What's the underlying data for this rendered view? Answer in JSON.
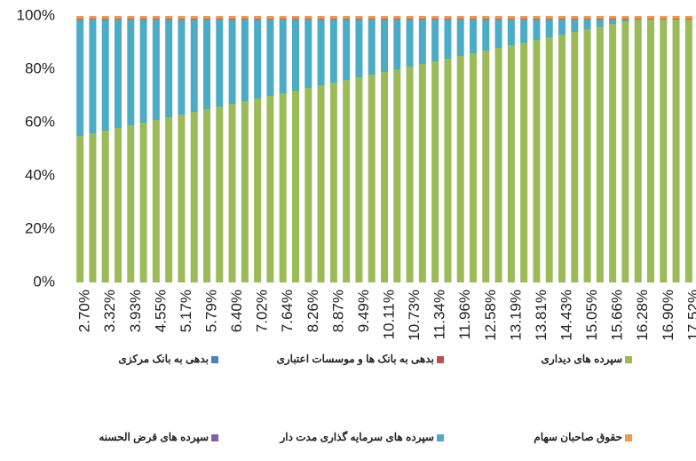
{
  "chart_data": {
    "type": "stacked_bar",
    "categories": [
      "2.70%",
      null,
      "3.32%",
      null,
      "3.93%",
      null,
      "4.55%",
      null,
      "5.17%",
      null,
      "5.79%",
      null,
      "6.40%",
      null,
      "7.02%",
      null,
      "7.64%",
      null,
      "8.26%",
      null,
      "8.87%",
      null,
      "9.49%",
      null,
      "10.11%",
      null,
      "10.73%",
      null,
      "11.34%",
      null,
      "11.96%",
      null,
      "12.58%",
      null,
      "13.19%",
      null,
      "13.81%",
      null,
      "14.43%",
      null,
      "15.05%",
      null,
      "15.66%",
      null,
      "16.28%",
      null,
      "16.90%",
      null,
      "17.52%"
    ],
    "series": [
      {
        "name": "سپرده های دیداری",
        "color": "#9bbb59",
        "values": [
          55,
          56,
          57,
          58,
          59,
          60,
          61,
          62,
          63,
          64,
          65,
          66,
          67,
          68,
          69,
          70,
          71,
          72,
          73,
          74,
          75,
          76,
          77,
          78,
          79,
          80,
          81,
          82,
          83,
          84,
          85,
          86,
          87,
          88,
          89,
          90,
          91,
          92,
          93,
          94,
          95,
          96,
          97,
          98,
          98.7,
          98.7,
          98.7,
          98.7,
          98.7
        ]
      },
      {
        "name": "سپرده های سرمایه گذاری مدت دار",
        "color": "#4bacc6",
        "values": [
          43.7,
          42.7,
          41.7,
          40.7,
          39.7,
          38.7,
          37.7,
          36.7,
          35.7,
          34.7,
          33.7,
          32.7,
          31.7,
          30.7,
          29.7,
          28.7,
          27.7,
          26.7,
          25.7,
          24.7,
          23.7,
          22.7,
          21.7,
          20.7,
          19.7,
          18.7,
          17.7,
          16.7,
          15.7,
          14.7,
          13.7,
          12.7,
          11.7,
          10.7,
          9.7,
          8.7,
          7.7,
          6.7,
          5.7,
          4.7,
          3.7,
          2.7,
          1.7,
          0.7,
          0,
          0,
          0,
          0,
          0
        ]
      },
      {
        "name": "بدهی به بانک ها و موسسات اعتباری",
        "color": "#c0504d",
        "values": [
          0.3,
          0.3,
          0.3,
          0.3,
          0.3,
          0.3,
          0.3,
          0.3,
          0.3,
          0.3,
          0.3,
          0.3,
          0.3,
          0.3,
          0.3,
          0.3,
          0.3,
          0.3,
          0.3,
          0.3,
          0.3,
          0.3,
          0.3,
          0.3,
          0.3,
          0.3,
          0.3,
          0.3,
          0.3,
          0.3,
          0.3,
          0.3,
          0.3,
          0.3,
          0.3,
          0.3,
          0.3,
          0.3,
          0.3,
          0.3,
          0.3,
          0.3,
          0.3,
          0.3,
          0.3,
          0.3,
          0.3,
          0.3,
          0.3
        ]
      },
      {
        "name": "حقوق صاحبان سهام",
        "color": "#f79646",
        "values": [
          1,
          1,
          1,
          1,
          1,
          1,
          1,
          1,
          1,
          1,
          1,
          1,
          1,
          1,
          1,
          1,
          1,
          1,
          1,
          1,
          1,
          1,
          1,
          1,
          1,
          1,
          1,
          1,
          1,
          1,
          1,
          1,
          1,
          1,
          1,
          1,
          1,
          1,
          1,
          1,
          1,
          1,
          1,
          1,
          1,
          1,
          1,
          1,
          1
        ]
      },
      {
        "name": "بدهی به بانک مرکزی",
        "color": "#4f81bd",
        "values": [
          0,
          0,
          0,
          0,
          0,
          0,
          0,
          0,
          0,
          0,
          0,
          0,
          0,
          0,
          0,
          0,
          0,
          0,
          0,
          0,
          0,
          0,
          0,
          0,
          0,
          0,
          0,
          0,
          0,
          0,
          0,
          0,
          0,
          0,
          0,
          0,
          0,
          0,
          0,
          0,
          0,
          0,
          0,
          0,
          0,
          0,
          0,
          0,
          0
        ]
      },
      {
        "name": "سپرده های قرض الحسنه",
        "color": "#8064a2",
        "values": [
          0,
          0,
          0,
          0,
          0,
          0,
          0,
          0,
          0,
          0,
          0,
          0,
          0,
          0,
          0,
          0,
          0,
          0,
          0,
          0,
          0,
          0,
          0,
          0,
          0,
          0,
          0,
          0,
          0,
          0,
          0,
          0,
          0,
          0,
          0,
          0,
          0,
          0,
          0,
          0,
          0,
          0,
          0,
          0,
          0,
          0,
          0,
          0,
          0
        ]
      }
    ],
    "ylim": [
      0,
      100
    ],
    "yticks": [
      {
        "value": 0,
        "label": "0%"
      },
      {
        "value": 20,
        "label": "20%"
      },
      {
        "value": 40,
        "label": "40%"
      },
      {
        "value": 60,
        "label": "60%"
      },
      {
        "value": 80,
        "label": "80%"
      },
      {
        "value": 100,
        "label": "100%"
      }
    ],
    "grid": false,
    "legend": "bottom"
  }
}
